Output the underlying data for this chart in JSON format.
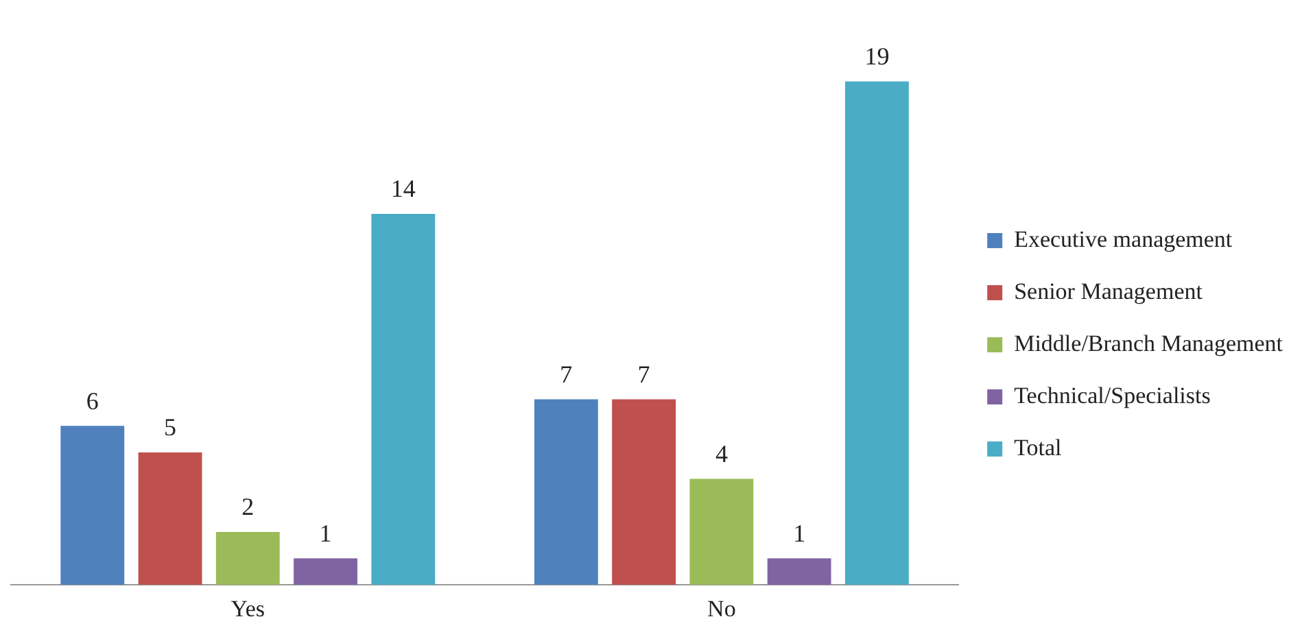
{
  "chart_data": {
    "type": "bar",
    "categories": [
      "Yes",
      "No"
    ],
    "series": [
      {
        "name": "Executive management",
        "color": "#4f81bd",
        "values": [
          6,
          7
        ]
      },
      {
        "name": "Senior Management",
        "color": "#c0504d",
        "values": [
          5,
          7
        ]
      },
      {
        "name": "Middle/Branch Management",
        "color": "#9bbb59",
        "values": [
          2,
          4
        ]
      },
      {
        "name": "Technical/Specialists",
        "color": "#8064a2",
        "values": [
          1,
          1
        ]
      },
      {
        "name": "Total",
        "color": "#4bacc6",
        "values": [
          14,
          19
        ]
      }
    ],
    "data_labels": true,
    "legend": "right",
    "grid": false,
    "tick_labels": "x"
  }
}
